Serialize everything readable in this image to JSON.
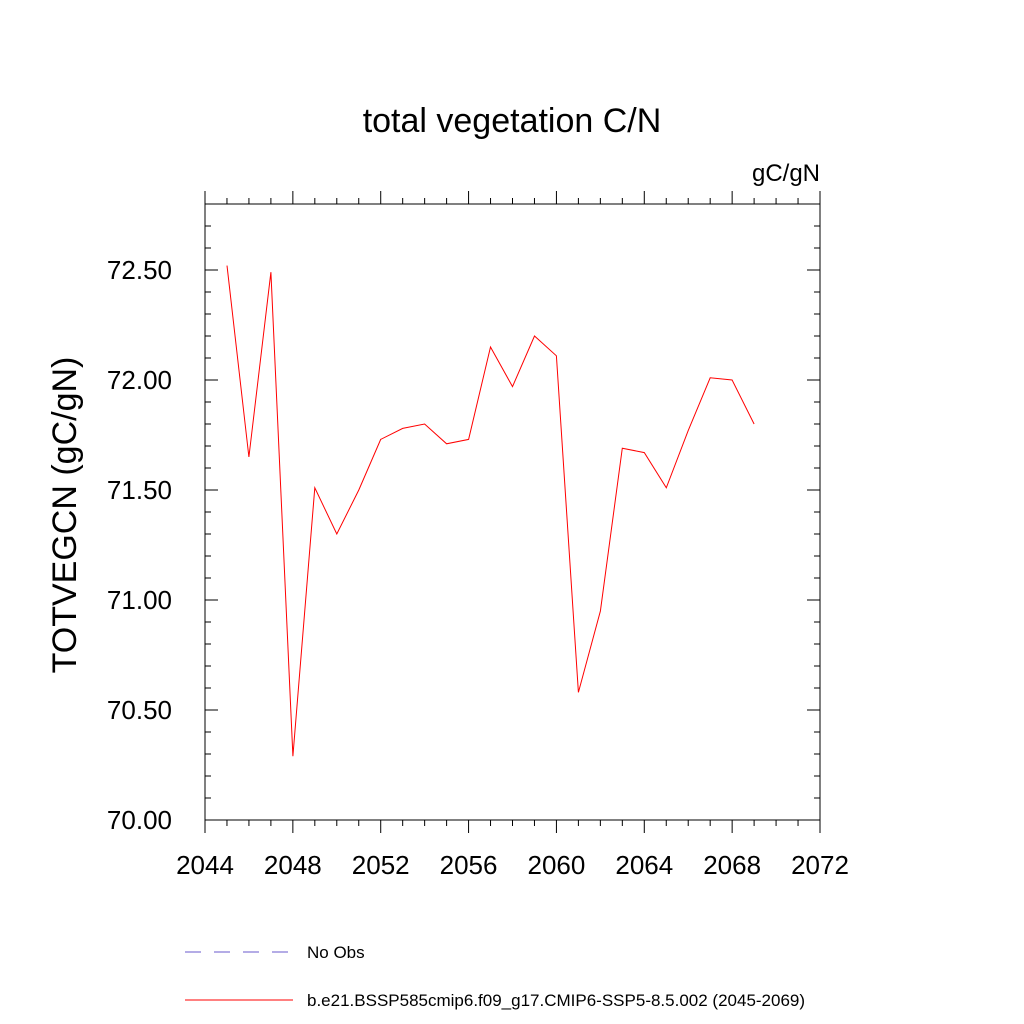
{
  "chart_data": {
    "type": "line",
    "title": "total vegetation C/N",
    "units": "gC/gN",
    "ylabel": "TOTVEGCN  (gC/gN)",
    "xlabel": "",
    "xlim": [
      2044,
      2072
    ],
    "ylim": [
      70.0,
      72.8
    ],
    "x_ticks": [
      2044,
      2048,
      2052,
      2056,
      2060,
      2064,
      2068,
      2072
    ],
    "x_tick_labels": [
      "2044",
      "2048",
      "2052",
      "2056",
      "2060",
      "2064",
      "2068",
      "2072"
    ],
    "y_ticks": [
      70.0,
      70.5,
      71.0,
      71.5,
      72.0,
      72.5
    ],
    "y_tick_labels": [
      "70.00",
      "70.50",
      "71.00",
      "71.50",
      "72.00",
      "72.50"
    ],
    "grid": false,
    "series": [
      {
        "name": "b.e21.BSSP585cmip6.f09_g17.CMIP6-SSP5-8.5.002 (2045-2069)",
        "color": "#ff0000",
        "style": "solid",
        "x": [
          2045,
          2046,
          2047,
          2048,
          2049,
          2050,
          2051,
          2052,
          2053,
          2054,
          2055,
          2056,
          2057,
          2058,
          2059,
          2060,
          2061,
          2062,
          2063,
          2064,
          2065,
          2066,
          2067,
          2068,
          2069
        ],
        "y": [
          72.52,
          71.65,
          72.49,
          70.29,
          71.51,
          71.3,
          71.5,
          71.73,
          71.78,
          71.8,
          71.71,
          71.73,
          72.15,
          71.97,
          72.2,
          72.11,
          70.58,
          70.95,
          71.69,
          71.67,
          71.51,
          71.77,
          72.01,
          72.0,
          71.8
        ]
      }
    ],
    "legend": {
      "placement": "bottom",
      "entries": [
        {
          "label": "No Obs",
          "color": "#6a5acd",
          "style": "dashed"
        },
        {
          "label": "b.e21.BSSP585cmip6.f09_g17.CMIP6-SSP5-8.5.002 (2045-2069)",
          "color": "#ff0000",
          "style": "solid"
        }
      ]
    }
  }
}
